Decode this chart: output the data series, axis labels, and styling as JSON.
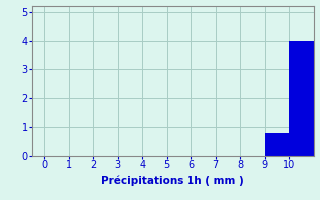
{
  "bin_edges": [
    0,
    1,
    2,
    3,
    4,
    5,
    6,
    7,
    8,
    9,
    10,
    11
  ],
  "values": [
    0,
    0,
    0,
    0,
    0,
    0,
    0,
    0,
    0,
    0.8,
    4.0
  ],
  "bar_color": "#0000DD",
  "background_color": "#DCF5EE",
  "xlabel": "Précipitations 1h ( mm )",
  "ylim": [
    0,
    5.2
  ],
  "xlim": [
    -0.5,
    11.0
  ],
  "yticks": [
    0,
    1,
    2,
    3,
    4,
    5
  ],
  "xticks": [
    0,
    1,
    2,
    3,
    4,
    5,
    6,
    7,
    8,
    9,
    10
  ],
  "grid_color": "#A8CCC4",
  "tick_color": "#0000CC",
  "label_color": "#0000CC",
  "axis_color": "#888888",
  "xlabel_fontsize": 7.5,
  "tick_fontsize": 7,
  "bar_width": 1.0
}
